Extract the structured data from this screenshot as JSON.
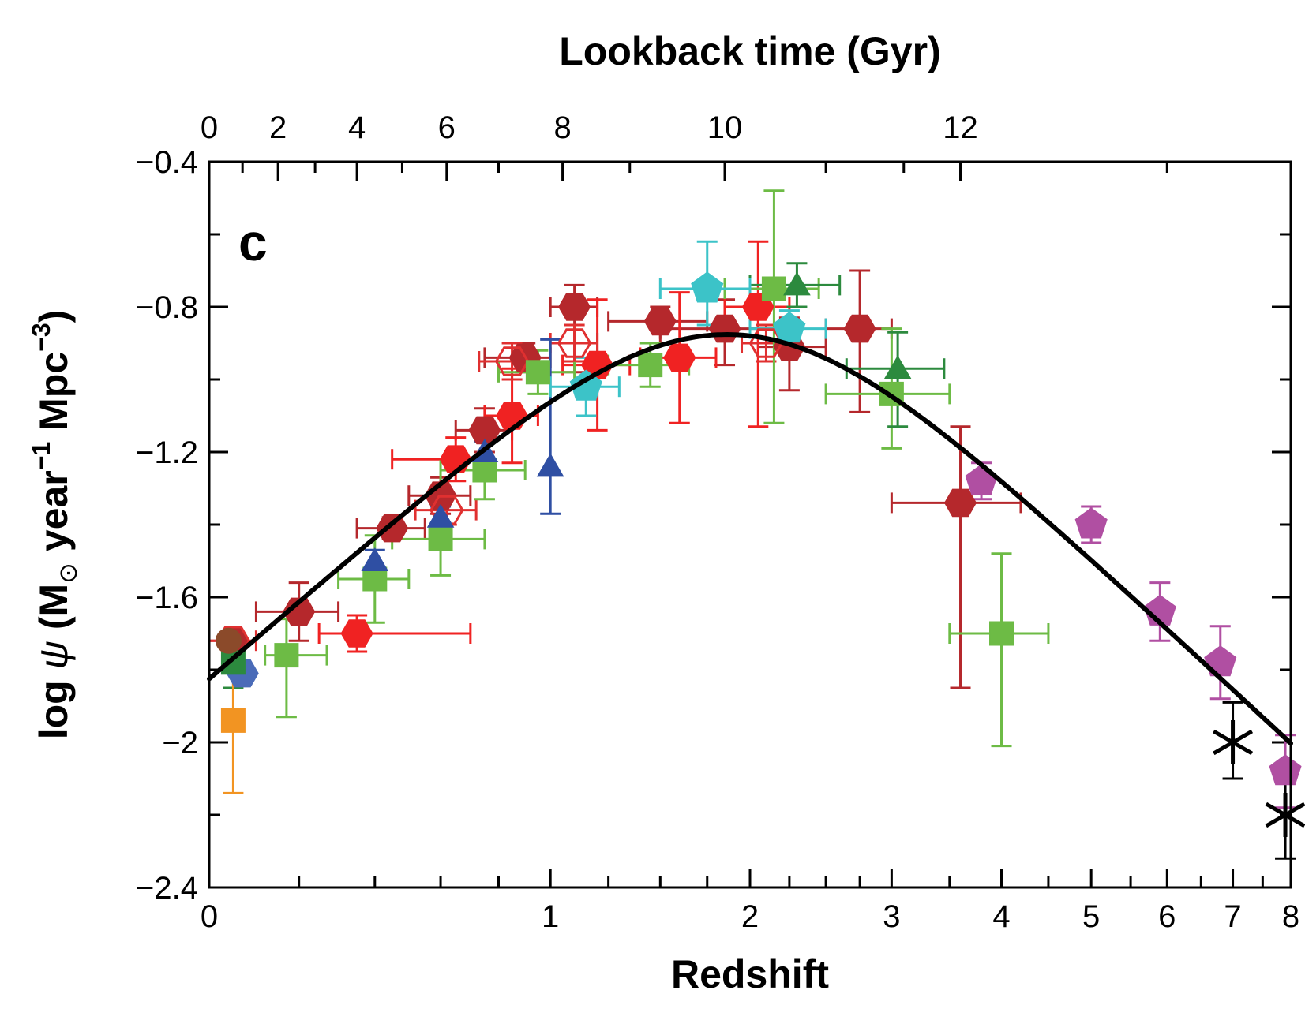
{
  "chart_data": {
    "type": "scatter",
    "panel_label": "c",
    "xlabel": "Redshift",
    "ylabel_parts": [
      "log ",
      "ψ",
      " (M",
      "⊙",
      " year",
      "−1",
      " Mpc",
      "−3",
      ")"
    ],
    "top_axis_label": "Lookback time (Gyr)",
    "x_scale": "log(1+z)",
    "xlim": [
      0,
      8
    ],
    "ylim": [
      -2.4,
      -0.4
    ],
    "x_ticks": [
      {
        "value": 0,
        "label": "0"
      },
      {
        "value": 1,
        "label": "1"
      },
      {
        "value": 2,
        "label": "2"
      },
      {
        "value": 3,
        "label": "3"
      },
      {
        "value": 4,
        "label": "4"
      },
      {
        "value": 5,
        "label": "5"
      },
      {
        "value": 6,
        "label": "6"
      },
      {
        "value": 7,
        "label": "7"
      },
      {
        "value": 8,
        "label": "8"
      }
    ],
    "x_minor_ticks": [
      0.2,
      0.4,
      0.6,
      0.8,
      1.25,
      1.5,
      1.75,
      2.25,
      2.5,
      2.75,
      3.5,
      4.5,
      5.5,
      6.5,
      7.5
    ],
    "y_ticks": [
      {
        "value": -0.4,
        "label": "−0.4"
      },
      {
        "value": -0.8,
        "label": "−0.8"
      },
      {
        "value": -1.2,
        "label": "−1.2"
      },
      {
        "value": -1.6,
        "label": "−1.6"
      },
      {
        "value": -2.0,
        "label": "−2"
      },
      {
        "value": -2.4,
        "label": "−2.4"
      }
    ],
    "y_minor_ticks": [
      -0.6,
      -1.0,
      -1.4,
      -1.8,
      -2.2
    ],
    "top_ticks": [
      {
        "gyr": 0,
        "label": "0",
        "z": 0.0
      },
      {
        "gyr": 2,
        "label": "2",
        "z": 0.15
      },
      {
        "gyr": 4,
        "label": "4",
        "z": 0.35
      },
      {
        "gyr": 6,
        "label": "6",
        "z": 0.62
      },
      {
        "gyr": 8,
        "label": "8",
        "z": 1.05
      },
      {
        "gyr": 10,
        "label": "10",
        "z": 1.85
      },
      {
        "gyr": 12,
        "label": "12",
        "z": 3.6
      }
    ],
    "top_minor_ticks_z": [
      0.07,
      0.24,
      0.48,
      0.8,
      1.35,
      2.5,
      3.1,
      6.0
    ],
    "fit_curve": {
      "name": "",
      "color": "#000000"
    },
    "series": [
      {
        "marker": "hexagon",
        "color": "#b5282c",
        "filled": true,
        "points": [
          {
            "z": 0.05,
            "y": -1.72,
            "xerr": [
              0.05,
              0.0
            ],
            "yerr": [
              0.02,
              0.02
            ]
          },
          {
            "z": 0.2,
            "y": -1.64,
            "xerr": [
              0.1,
              0.1
            ],
            "yerr": [
              0.08,
              0.08
            ]
          },
          {
            "z": 0.45,
            "y": -1.41,
            "xerr": [
              0.1,
              0.1
            ],
            "yerr": [
              0.03,
              0.03
            ]
          },
          {
            "z": 0.6,
            "y": -1.32,
            "xerr": [
              0.1,
              0.1
            ],
            "yerr": [
              0.05,
              0.05
            ]
          },
          {
            "z": 0.75,
            "y": -1.14,
            "xerr": [
              0.1,
              0.1
            ],
            "yerr": [
              0.06,
              0.06
            ]
          },
          {
            "z": 0.9,
            "y": -0.94,
            "xerr": [
              0.15,
              0.1
            ],
            "yerr": [
              0.04,
              0.04
            ]
          },
          {
            "z": 1.1,
            "y": -0.8,
            "xerr": [
              0.1,
              0.1
            ],
            "yerr": [
              0.18,
              0.06
            ]
          },
          {
            "z": 1.5,
            "y": -0.84,
            "xerr": [
              0.25,
              0.25
            ],
            "yerr": [
              0.06,
              0.04
            ]
          },
          {
            "z": 1.85,
            "y": -0.86,
            "xerr": [
              0.35,
              0.35
            ],
            "yerr": [
              0.1,
              0.08
            ]
          },
          {
            "z": 2.25,
            "y": -0.91,
            "xerr": [
              0.2,
              0.25
            ],
            "yerr": [
              0.12,
              0.08
            ]
          },
          {
            "z": 2.75,
            "y": -0.86,
            "xerr": [
              0.25,
              0.25
            ],
            "yerr": [
              0.23,
              0.16
            ]
          },
          {
            "z": 3.6,
            "y": -1.34,
            "xerr": [
              0.6,
              0.6
            ],
            "yerr": [
              0.51,
              0.21
            ]
          }
        ]
      },
      {
        "marker": "hexagon",
        "color": "#f02222",
        "filled": true,
        "points": [
          {
            "z": 0.35,
            "y": -1.7,
            "xerr": [
              0.1,
              0.35
            ],
            "yerr": [
              0.05,
              0.05
            ]
          },
          {
            "z": 0.65,
            "y": -1.22,
            "xerr": [
              0.2,
              0.1
            ],
            "yerr": [
              0.06,
              0.06
            ]
          },
          {
            "z": 0.85,
            "y": -1.1,
            "xerr": [
              0.1,
              0.1
            ],
            "yerr": [
              0.13,
              0.13
            ]
          },
          {
            "z": 1.2,
            "y": -0.96,
            "xerr": [
              0.15,
              0.15
            ],
            "yerr": [
              0.18,
              0.18
            ]
          },
          {
            "z": 1.6,
            "y": -0.94,
            "xerr": [
              0.2,
              0.2
            ],
            "yerr": [
              0.18,
              0.18
            ]
          },
          {
            "z": 2.05,
            "y": -0.8,
            "xerr": [
              0.2,
              0.2
            ],
            "yerr": [
              0.33,
              0.18
            ]
          }
        ]
      },
      {
        "marker": "hexagon",
        "color": "#e03030",
        "filled": false,
        "points": [
          {
            "z": 0.05,
            "y": -1.72,
            "xerr": [
              0.05,
              0.05
            ],
            "yerr": [
              0.02,
              0.02
            ]
          },
          {
            "z": 0.62,
            "y": -1.36,
            "xerr": [
              0.1,
              0.1
            ],
            "yerr": [
              0.04,
              0.04
            ]
          },
          {
            "z": 0.85,
            "y": -0.95,
            "xerr": [
              0.12,
              0.1
            ],
            "yerr": [
              0.05,
              0.05
            ]
          },
          {
            "z": 1.1,
            "y": -0.9,
            "xerr": [
              0.1,
              0.1
            ],
            "yerr": [
              0.05,
              0.05
            ]
          },
          {
            "z": 2.1,
            "y": -0.9,
            "xerr": [
              0.15,
              0.15
            ],
            "yerr": [
              0.05,
              0.05
            ]
          }
        ]
      },
      {
        "marker": "square",
        "color": "#6dbb45",
        "filled": true,
        "points": [
          {
            "z": 0.17,
            "y": -1.76,
            "xerr": [
              0.05,
              0.1
            ],
            "yerr": [
              0.17,
              0.1
            ]
          },
          {
            "z": 0.4,
            "y": -1.55,
            "xerr": [
              0.1,
              0.1
            ],
            "yerr": [
              0.12,
              0.12
            ]
          },
          {
            "z": 0.6,
            "y": -1.44,
            "xerr": [
              0.15,
              0.15
            ],
            "yerr": [
              0.1,
              0.1
            ]
          },
          {
            "z": 0.75,
            "y": -1.25,
            "xerr": [
              0.15,
              0.15
            ],
            "yerr": [
              0.08,
              0.08
            ]
          },
          {
            "z": 0.95,
            "y": -0.98,
            "xerr": [
              0.15,
              0.15
            ],
            "yerr": [
              0.06,
              0.06
            ]
          },
          {
            "z": 1.45,
            "y": -0.96,
            "xerr": [
              0.2,
              0.2
            ],
            "yerr": [
              0.06,
              0.06
            ]
          },
          {
            "z": 2.15,
            "y": -0.75,
            "xerr": [
              0.3,
              0.3
            ],
            "yerr": [
              0.37,
              0.27
            ]
          },
          {
            "z": 3.0,
            "y": -1.04,
            "xerr": [
              0.5,
              0.5
            ],
            "yerr": [
              0.15,
              0.18
            ]
          },
          {
            "z": 4.0,
            "y": -1.7,
            "xerr": [
              0.5,
              0.5
            ],
            "yerr": [
              0.31,
              0.22
            ]
          }
        ]
      },
      {
        "marker": "triangle",
        "color": "#2c8a3e",
        "filled": true,
        "points": [
          {
            "z": 2.3,
            "y": -0.74,
            "xerr": [
              0.3,
              0.3
            ],
            "yerr": [
              0.06,
              0.06
            ]
          },
          {
            "z": 3.05,
            "y": -0.97,
            "xerr": [
              0.4,
              0.4
            ],
            "yerr": [
              0.16,
              0.1
            ]
          }
        ]
      },
      {
        "marker": "triangle",
        "color": "#2f4fa3",
        "filled": true,
        "points": [
          {
            "z": 0.4,
            "y": -1.5,
            "xerr": [
              0.0,
              0.0
            ],
            "yerr": [
              0.03,
              0.03
            ]
          },
          {
            "z": 0.6,
            "y": -1.38,
            "xerr": [
              0.0,
              0.0
            ],
            "yerr": [
              0.03,
              0.03
            ]
          },
          {
            "z": 0.75,
            "y": -1.2,
            "xerr": [
              0.0,
              0.0
            ],
            "yerr": [
              0.03,
              0.03
            ]
          },
          {
            "z": 1.0,
            "y": -1.24,
            "xerr": [
              0.0,
              0.0
            ],
            "yerr": [
              0.13,
              0.35
            ]
          }
        ]
      },
      {
        "marker": "pentagon",
        "color": "#3cc3c8",
        "filled": true,
        "points": [
          {
            "z": 1.15,
            "y": -1.02,
            "xerr": [
              0.15,
              0.15
            ],
            "yerr": [
              0.08,
              0.08
            ]
          },
          {
            "z": 1.75,
            "y": -0.75,
            "xerr": [
              0.25,
              0.25
            ],
            "yerr": [
              0.1,
              0.13
            ]
          },
          {
            "z": 2.25,
            "y": -0.86,
            "xerr": [
              0.25,
              0.25
            ],
            "yerr": [
              0.05,
              0.05
            ]
          }
        ]
      },
      {
        "marker": "pentagon",
        "color": "#b04fa2",
        "filled": true,
        "points": [
          {
            "z": 3.8,
            "y": -1.28,
            "xerr": [
              0.0,
              0.0
            ],
            "yerr": [
              0.05,
              0.05
            ]
          },
          {
            "z": 5.0,
            "y": -1.4,
            "xerr": [
              0.0,
              0.0
            ],
            "yerr": [
              0.05,
              0.05
            ]
          },
          {
            "z": 5.9,
            "y": -1.64,
            "xerr": [
              0.0,
              0.0
            ],
            "yerr": [
              0.08,
              0.08
            ]
          },
          {
            "z": 6.8,
            "y": -1.78,
            "xerr": [
              0.0,
              0.0
            ],
            "yerr": [
              0.1,
              0.1
            ]
          },
          {
            "z": 7.9,
            "y": -2.08,
            "xerr": [
              0.0,
              0.0
            ],
            "yerr": [
              0.1,
              0.1
            ]
          }
        ]
      },
      {
        "marker": "hexagon",
        "color": "#4a6bb8",
        "filled": true,
        "points": [
          {
            "z": 0.07,
            "y": -1.81,
            "xerr": [
              0.0,
              0.0
            ],
            "yerr": [
              0.0,
              0.0
            ]
          }
        ]
      },
      {
        "marker": "square",
        "color": "#2c8a3e",
        "filled": true,
        "points": [
          {
            "z": 0.05,
            "y": -1.78,
            "xerr": [
              0.0,
              0.0
            ],
            "yerr": [
              0.07,
              0.04
            ]
          }
        ]
      },
      {
        "marker": "circle",
        "color": "#8b4a2a",
        "filled": true,
        "points": [
          {
            "z": 0.04,
            "y": -1.72,
            "xerr": [
              0.0,
              0.0
            ],
            "yerr": [
              0.0,
              0.0
            ]
          }
        ]
      },
      {
        "marker": "square",
        "color": "#f29422",
        "filled": true,
        "points": [
          {
            "z": 0.05,
            "y": -1.94,
            "xerr": [
              0.0,
              0.0
            ],
            "yerr": [
              0.2,
              0.2
            ]
          }
        ]
      },
      {
        "marker": "star",
        "color": "#000000",
        "filled": true,
        "points": [
          {
            "z": 7.0,
            "y": -2.0,
            "xerr": [
              0.0,
              0.0
            ],
            "yerr": [
              0.1,
              0.11
            ]
          },
          {
            "z": 7.9,
            "y": -2.2,
            "xerr": [
              0.0,
              0.0
            ],
            "yerr": [
              0.12,
              0.1
            ]
          }
        ]
      }
    ]
  }
}
